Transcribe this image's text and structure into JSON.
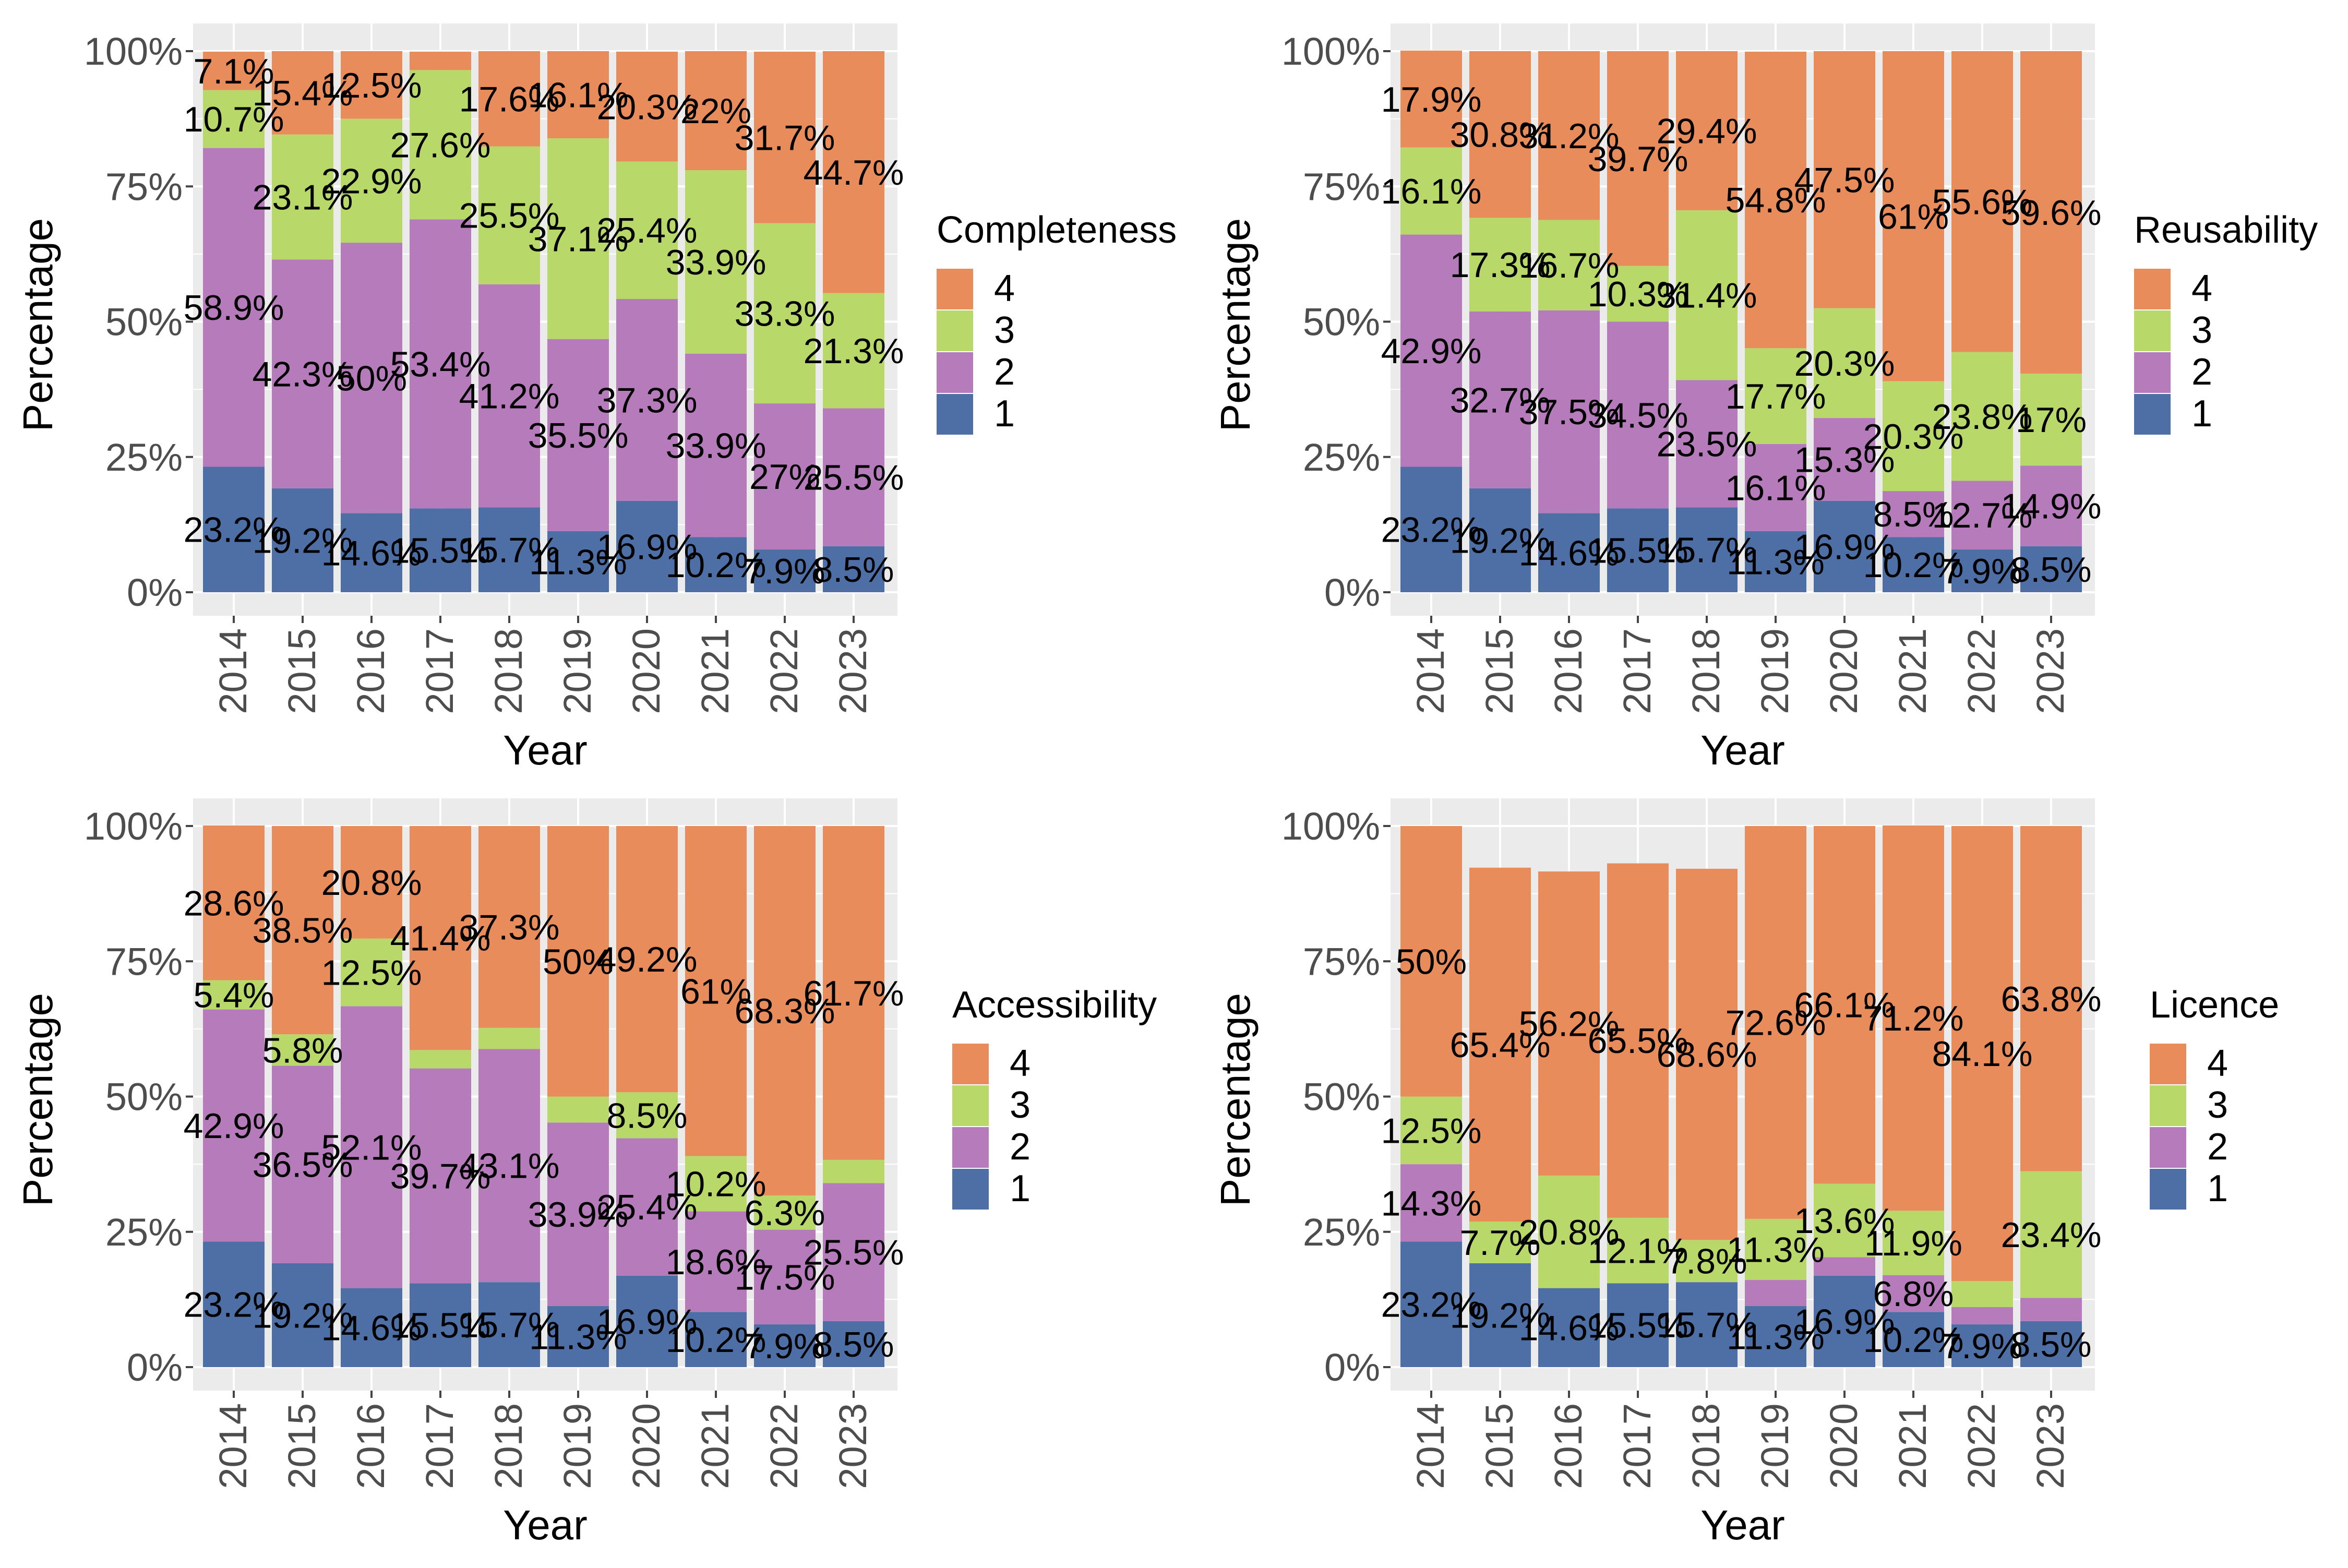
{
  "colors": {
    "1": "#4E6FA6",
    "2": "#B57BBA",
    "3": "#B9D86A",
    "4": "#E98C5B",
    "panel": "#EBEBEB"
  },
  "chart_data": [
    {
      "type": "bar",
      "stacked": true,
      "xlabel": "Year",
      "ylabel": "Percentage",
      "ylim": [
        0,
        100
      ],
      "yticks": [
        "0%",
        "25%",
        "50%",
        "75%",
        "100%"
      ],
      "categories": [
        "2014",
        "2015",
        "2016",
        "2017",
        "2018",
        "2019",
        "2020",
        "2021",
        "2022",
        "2023"
      ],
      "legend_title": "Completeness",
      "legend_position": "right",
      "series": [
        {
          "name": "1",
          "values": [
            23.2,
            19.2,
            14.6,
            15.5,
            15.7,
            11.3,
            16.9,
            10.2,
            7.9,
            8.5
          ],
          "labels": [
            "23.2%",
            "19.2%",
            "14.6%",
            "15.5%",
            "15.7%",
            "11.3%",
            "16.9%",
            "10.2%",
            "7.9%",
            "8.5%"
          ]
        },
        {
          "name": "2",
          "values": [
            58.9,
            42.3,
            50,
            53.4,
            41.2,
            35.5,
            37.3,
            33.9,
            27,
            25.5
          ],
          "labels": [
            "58.9%",
            "42.3%",
            "50%",
            "53.4%",
            "41.2%",
            "35.5%",
            "37.3%",
            "33.9%",
            "27%",
            "25.5%"
          ]
        },
        {
          "name": "3",
          "values": [
            10.7,
            23.1,
            22.9,
            27.6,
            25.5,
            37.1,
            25.4,
            33.9,
            33.3,
            21.3
          ],
          "labels": [
            "10.7%",
            "23.1%",
            "22.9%",
            "27.6%",
            "25.5%",
            "37.1%",
            "25.4%",
            "33.9%",
            "33.3%",
            "21.3%"
          ]
        },
        {
          "name": "4",
          "values": [
            7.1,
            15.4,
            12.5,
            3.4,
            17.6,
            16.1,
            20.3,
            22,
            31.7,
            44.7
          ],
          "labels": [
            "7.1%",
            "15.4%",
            "12.5%",
            "",
            "17.6%",
            "16.1%",
            "20.3%",
            "22%",
            "31.7%",
            "44.7%"
          ]
        }
      ]
    },
    {
      "type": "bar",
      "stacked": true,
      "xlabel": "Year",
      "ylabel": "Percentage",
      "ylim": [
        0,
        100
      ],
      "yticks": [
        "0%",
        "25%",
        "50%",
        "75%",
        "100%"
      ],
      "categories": [
        "2014",
        "2015",
        "2016",
        "2017",
        "2018",
        "2019",
        "2020",
        "2021",
        "2022",
        "2023"
      ],
      "legend_title": "Reusability",
      "legend_position": "right",
      "series": [
        {
          "name": "1",
          "values": [
            23.2,
            19.2,
            14.6,
            15.5,
            15.7,
            11.3,
            16.9,
            10.2,
            7.9,
            8.5
          ],
          "labels": [
            "23.2%",
            "19.2%",
            "14.6%",
            "15.5%",
            "15.7%",
            "11.3%",
            "16.9%",
            "10.2%",
            "7.9%",
            "8.5%"
          ]
        },
        {
          "name": "2",
          "values": [
            42.9,
            32.7,
            37.5,
            34.5,
            23.5,
            16.1,
            15.3,
            8.5,
            12.7,
            14.9
          ],
          "labels": [
            "42.9%",
            "32.7%",
            "37.5%",
            "34.5%",
            "23.5%",
            "16.1%",
            "15.3%",
            "8.5%",
            "12.7%",
            "14.9%"
          ]
        },
        {
          "name": "3",
          "values": [
            16.1,
            17.3,
            16.7,
            10.3,
            31.4,
            17.7,
            20.3,
            20.3,
            23.8,
            17
          ],
          "labels": [
            "16.1%",
            "17.3%",
            "16.7%",
            "10.3%",
            "31.4%",
            "17.7%",
            "20.3%",
            "20.3%",
            "23.8%",
            "17%"
          ]
        },
        {
          "name": "4",
          "values": [
            17.9,
            30.8,
            31.2,
            39.7,
            29.4,
            54.8,
            47.5,
            61,
            55.6,
            59.6
          ],
          "labels": [
            "17.9%",
            "30.8%",
            "31.2%",
            "39.7%",
            "29.4%",
            "54.8%",
            "47.5%",
            "61%",
            "55.6%",
            "59.6%"
          ]
        }
      ]
    },
    {
      "type": "bar",
      "stacked": true,
      "xlabel": "Year",
      "ylabel": "Percentage",
      "ylim": [
        0,
        100
      ],
      "yticks": [
        "0%",
        "25%",
        "50%",
        "75%",
        "100%"
      ],
      "categories": [
        "2014",
        "2015",
        "2016",
        "2017",
        "2018",
        "2019",
        "2020",
        "2021",
        "2022",
        "2023"
      ],
      "legend_title": "Accessibility",
      "legend_position": "right",
      "series": [
        {
          "name": "1",
          "values": [
            23.2,
            19.2,
            14.6,
            15.5,
            15.7,
            11.3,
            16.9,
            10.2,
            7.9,
            8.5
          ],
          "labels": [
            "23.2%",
            "19.2%",
            "14.6%",
            "15.5%",
            "15.7%",
            "11.3%",
            "16.9%",
            "10.2%",
            "7.9%",
            "8.5%"
          ]
        },
        {
          "name": "2",
          "values": [
            42.9,
            36.5,
            52.1,
            39.7,
            43.1,
            33.9,
            25.4,
            18.6,
            17.5,
            25.5
          ],
          "labels": [
            "42.9%",
            "36.5%",
            "52.1%",
            "39.7%",
            "43.1%",
            "33.9%",
            "25.4%",
            "18.6%",
            "17.5%",
            "25.5%"
          ]
        },
        {
          "name": "3",
          "values": [
            5.4,
            5.8,
            12.5,
            3.4,
            3.9,
            4.8,
            8.5,
            10.2,
            6.3,
            4.3
          ],
          "labels": [
            "5.4%",
            "5.8%",
            "12.5%",
            "",
            "",
            "",
            "8.5%",
            "10.2%",
            "6.3%",
            ""
          ]
        },
        {
          "name": "4",
          "values": [
            28.6,
            38.5,
            20.8,
            41.4,
            37.3,
            50,
            49.2,
            61,
            68.3,
            61.7
          ],
          "labels": [
            "28.6%",
            "38.5%",
            "20.8%",
            "41.4%",
            "37.3%",
            "50%",
            "49.2%",
            "61%",
            "68.3%",
            "61.7%"
          ]
        }
      ]
    },
    {
      "type": "bar",
      "stacked": true,
      "xlabel": "Year",
      "ylabel": "Percentage",
      "ylim": [
        0,
        100
      ],
      "yticks": [
        "0%",
        "25%",
        "50%",
        "75%",
        "100%"
      ],
      "categories": [
        "2014",
        "2015",
        "2016",
        "2017",
        "2018",
        "2019",
        "2020",
        "2021",
        "2022",
        "2023"
      ],
      "legend_title": "Licence",
      "legend_position": "right",
      "series": [
        {
          "name": "1",
          "values": [
            23.2,
            19.2,
            14.6,
            15.5,
            15.7,
            11.3,
            16.9,
            10.2,
            7.9,
            8.5
          ],
          "labels": [
            "23.2%",
            "19.2%",
            "14.6%",
            "15.5%",
            "15.7%",
            "11.3%",
            "16.9%",
            "10.2%",
            "7.9%",
            "8.5%"
          ]
        },
        {
          "name": "2",
          "values": [
            14.3,
            0,
            0,
            0,
            0,
            4.8,
            3.4,
            6.8,
            3.2,
            4.3
          ],
          "labels": [
            "14.3%",
            "",
            "",
            "",
            "",
            "",
            "",
            "6.8%",
            "",
            ""
          ]
        },
        {
          "name": "3",
          "values": [
            12.5,
            7.7,
            20.8,
            12.1,
            7.8,
            11.3,
            13.6,
            11.9,
            4.8,
            23.4
          ],
          "labels": [
            "12.5%",
            "7.7%",
            "20.8%",
            "12.1%",
            "7.8%",
            "11.3%",
            "13.6%",
            "11.9%",
            "",
            "23.4%"
          ]
        },
        {
          "name": "4",
          "values": [
            50,
            65.4,
            56.2,
            65.5,
            68.6,
            72.6,
            66.1,
            71.2,
            84.1,
            63.8
          ],
          "labels": [
            "50%",
            "65.4%",
            "56.2%",
            "65.5%",
            "68.6%",
            "72.6%",
            "66.1%",
            "71.2%",
            "84.1%",
            "63.8%"
          ]
        }
      ]
    }
  ]
}
